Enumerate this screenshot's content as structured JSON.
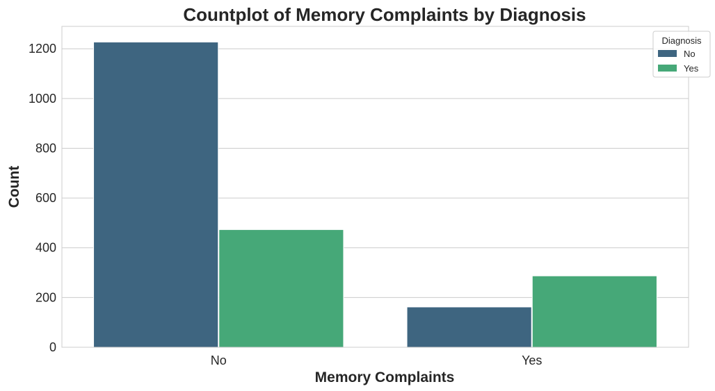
{
  "chart_data": {
    "type": "bar",
    "title": "Countplot of Memory Complaints by Diagnosis",
    "xlabel": "Memory Complaints",
    "ylabel": "Count",
    "categories": [
      "No",
      "Yes"
    ],
    "series": [
      {
        "name": "No",
        "values": [
          1227,
          162
        ],
        "color": "#3e6580"
      },
      {
        "name": "Yes",
        "values": [
          473,
          287
        ],
        "color": "#46a878"
      }
    ],
    "ylim": [
      0,
      1290
    ],
    "yticks": [
      0,
      200,
      400,
      600,
      800,
      1000,
      1200
    ],
    "grid": "horizontal",
    "legend": {
      "title": "Diagnosis",
      "placement": "top-right"
    }
  }
}
